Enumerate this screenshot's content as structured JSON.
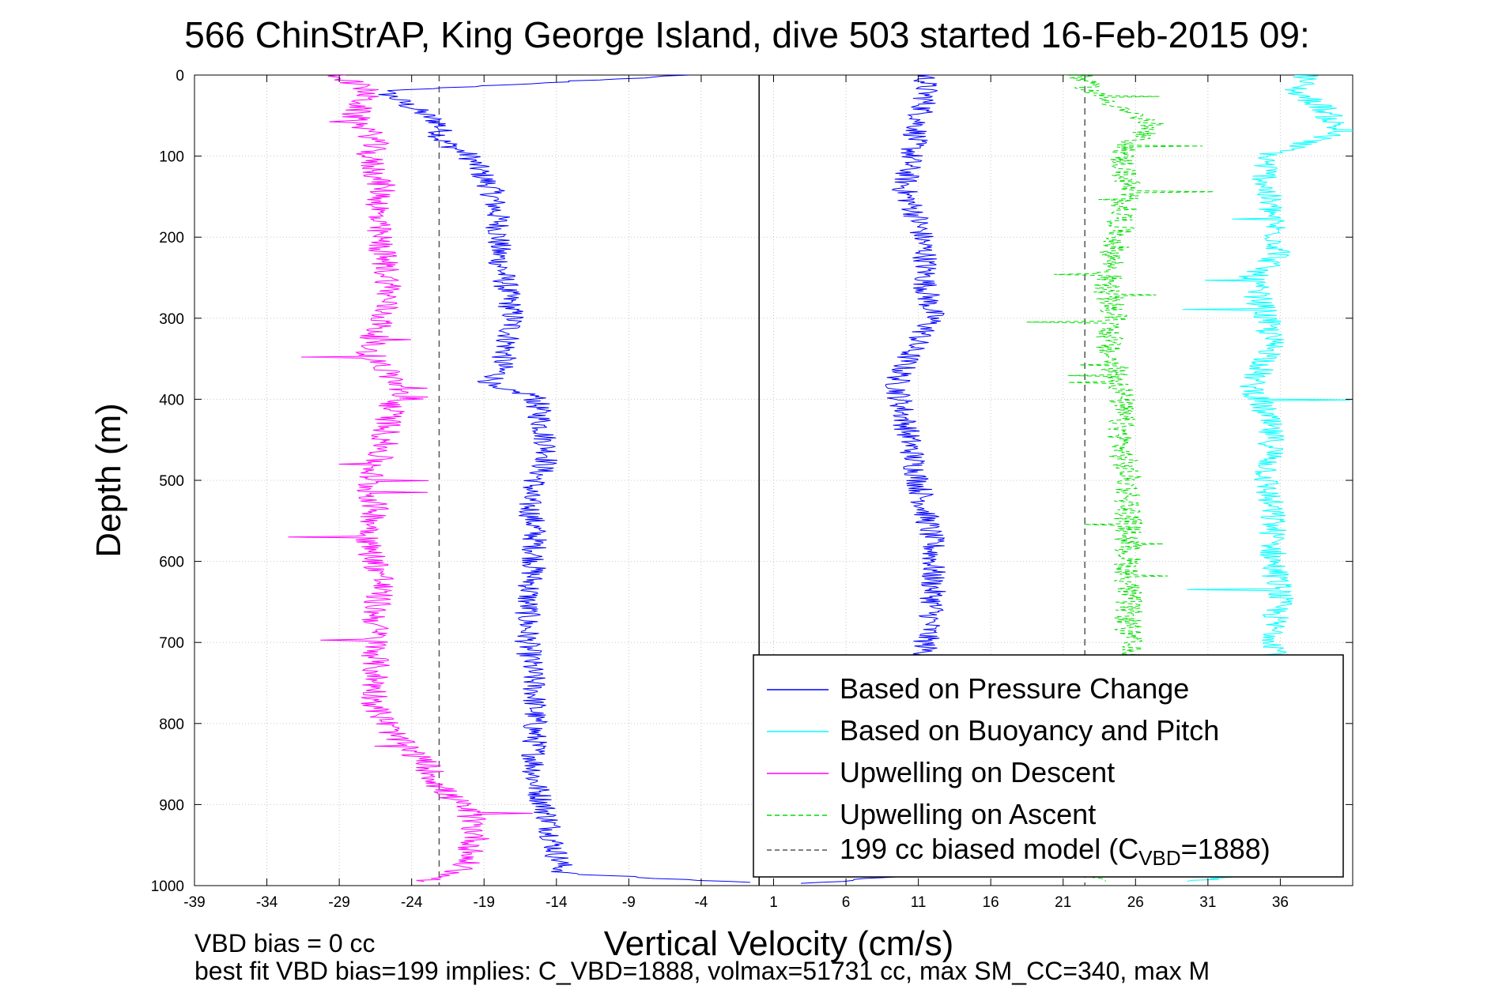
{
  "chart_data": {
    "type": "line",
    "title": "566 ChinStrAP, King George Island, dive 503 started 16-Feb-2015 09:",
    "xlabel": "Vertical Velocity (cm/s)",
    "ylabel": "Depth (m)",
    "xlim": [
      -39,
      41
    ],
    "ylim": [
      0,
      1000
    ],
    "y_reversed": true,
    "grid": true,
    "xticks": [
      -39,
      -34,
      -29,
      -24,
      -19,
      -14,
      -9,
      -4,
      1,
      6,
      11,
      16,
      21,
      26,
      31,
      36
    ],
    "xtick_labels": [
      "-39",
      "-34",
      "-29",
      "-24",
      "-19",
      "-14",
      "-9",
      "-4",
      "1",
      "6",
      "11",
      "16",
      "21",
      "26",
      "31",
      "36"
    ],
    "yticks": [
      0,
      100,
      200,
      300,
      400,
      500,
      600,
      700,
      800,
      900,
      1000
    ],
    "ytick_labels": [
      "0",
      "100",
      "200",
      "300",
      "400",
      "500",
      "600",
      "700",
      "800",
      "900",
      "1000"
    ],
    "reference_lines": [
      {
        "type": "vertical",
        "x": 0,
        "color": "#000000",
        "style": "solid"
      },
      {
        "type": "vertical",
        "x": -22.1,
        "color": "#555555",
        "style": "dashed"
      },
      {
        "type": "vertical",
        "x": 22.5,
        "color": "#555555",
        "style": "dashed"
      }
    ],
    "series": [
      {
        "name": "Based on Pressure Change",
        "color": "#0000ff",
        "style": "solid",
        "profiles": [
          {
            "depth": [
              0,
              20,
              40,
              60,
              80,
              100,
              140,
              180,
              220,
              260,
              300,
              340,
              370,
              385,
              395,
              430,
              470,
              520,
              560,
              600,
              650,
              700,
              760,
              820,
              870,
              920,
              960,
              985,
              992,
              997
            ],
            "value": [
              -5,
              -26,
              -24,
              -22,
              -22,
              -20,
              -18.5,
              -18,
              -18,
              -17.5,
              -17,
              -17.5,
              -18,
              -19,
              -15.5,
              -15,
              -14.5,
              -16,
              -15.5,
              -15.5,
              -16,
              -16,
              -15.5,
              -15.5,
              -15.5,
              -14.5,
              -14,
              -13.5,
              -6,
              1
            ]
          },
          {
            "depth": [
              0,
              30,
              60,
              100,
              140,
              180,
              220,
              260,
              300,
              340,
              380,
              420,
              460,
              500,
              540,
              580,
              620,
              660,
              700,
              740,
              780,
              820,
              860,
              900,
              940,
              970,
              990,
              998
            ],
            "value": [
              11.5,
              11.5,
              11,
              10.5,
              10,
              11,
              11.5,
              11.5,
              12,
              10.5,
              9.5,
              10,
              10.5,
              11,
              11.5,
              12,
              12,
              12,
              11.5,
              11.5,
              11.5,
              11.5,
              11.5,
              11.5,
              11.5,
              11,
              9,
              3
            ]
          }
        ]
      },
      {
        "name": "Based on Buoyancy and Pitch",
        "color": "#00ffff",
        "style": "solid",
        "profiles": [
          {
            "depth": [
              0,
              20,
              40,
              70,
              100,
              140,
              180,
              220,
              250,
              300,
              340,
              380,
              420,
              460,
              500,
              550,
              600,
              640,
              680,
              720,
              760,
              800,
              860,
              920,
              980,
              995
            ],
            "value": [
              38,
              37,
              39,
              40,
              35,
              35,
              35.5,
              36,
              34,
              35,
              35.5,
              34,
              35,
              35.5,
              35,
              35.5,
              35.5,
              36,
              35.5,
              36,
              36,
              36,
              36,
              36,
              36,
              30
            ]
          }
        ]
      },
      {
        "name": "Upwelling on Descent",
        "color": "#ff00ff",
        "style": "solid",
        "profiles": [
          {
            "depth": [
              0,
              20,
              50,
              80,
              100,
              140,
              180,
              220,
              260,
              300,
              340,
              380,
              420,
              460,
              500,
              540,
              580,
              620,
              660,
              700,
              740,
              780,
              820,
              850,
              880,
              910,
              940,
              960,
              980,
              995
            ],
            "value": [
              -29,
              -27,
              -28,
              -26.5,
              -27,
              -26,
              -26.5,
              -26,
              -25.5,
              -26,
              -27,
              -25,
              -25.5,
              -26,
              -27,
              -26.5,
              -27,
              -26,
              -26.5,
              -26.5,
              -26.5,
              -26.5,
              -25,
              -23,
              -22,
              -20,
              -19.5,
              -20,
              -20.5,
              -23
            ]
          }
        ]
      },
      {
        "name": "Upwelling on Ascent",
        "color": "#00dd00",
        "style": "dashed",
        "profiles": [
          {
            "depth": [
              0,
              20,
              40,
              60,
              80,
              100,
              140,
              180,
              220,
              260,
              300,
              340,
              380,
              420,
              460,
              500,
              540,
              580,
              620,
              660,
              700,
              740,
              780,
              820,
              860,
              900,
              940,
              980,
              995
            ],
            "value": [
              22,
              23,
              25,
              27,
              26,
              25,
              25.5,
              25,
              24.5,
              24,
              24.5,
              24,
              25,
              25,
              25,
              25.5,
              25.5,
              25.5,
              25.5,
              25.5,
              25.5,
              25.5,
              25.5,
              25.5,
              25.5,
              25.5,
              25.5,
              24,
              23
            ]
          }
        ]
      },
      {
        "name": "199 cc biased model (C",
        "name_subscript": "VBD",
        "name_suffix": "=1888)",
        "color": "#555555",
        "style": "dashed"
      }
    ],
    "legend_position": "bottom-right"
  },
  "footer": {
    "line1": "VBD bias = 0 cc",
    "line2": "best fit VBD bias=199 implies: C_VBD=1888, volmax=51731 cc, max SM_CC=340, max M"
  }
}
